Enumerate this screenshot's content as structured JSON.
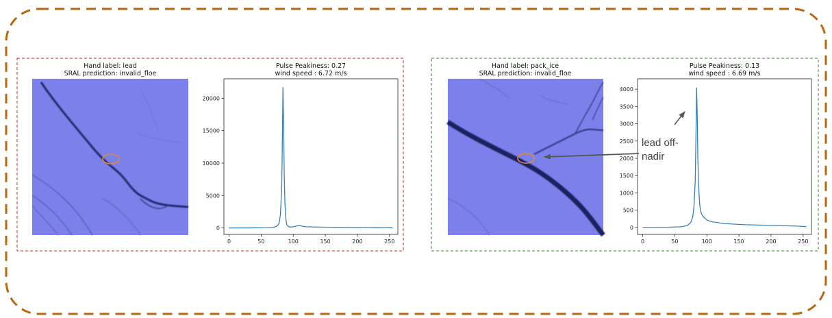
{
  "colors": {
    "outer_border": "#b8660f",
    "left_panel_border": "#cc1f1f",
    "right_panel_border": "#3a7d2c",
    "series_line": "#3a7fb5",
    "ellipse_marker": "#e08a30",
    "arrow": "#555555",
    "satellite_image": "#7b80ea"
  },
  "panels": [
    {
      "image_title_line1": "Hand label: lead",
      "image_title_line2": "SRAL prediction: invalid_floe",
      "image_description_icon": "satellite-ice-image"
    },
    {
      "image_title_line1": "Hand label: pack_ice",
      "image_title_line2": "SRAL prediction: invalid_floe",
      "image_description_icon": "satellite-ice-image"
    }
  ],
  "annotation": {
    "line1": "lead off-",
    "line2": "nadir"
  },
  "chart_data": [
    {
      "type": "line",
      "title": "Pulse Peakiness: 0.27\nwind speed : 6.72 m/s",
      "title_line1": "Pulse Peakiness: 0.27",
      "title_line2": "wind speed : 6.72 m/s",
      "xlabel": "",
      "ylabel": "",
      "xlim": [
        -8,
        263
      ],
      "ylim": [
        -1000,
        23000
      ],
      "xticks": [
        0,
        50,
        100,
        150,
        200,
        250
      ],
      "yticks": [
        0,
        5000,
        10000,
        15000,
        20000
      ],
      "grid": false,
      "x": [
        0,
        20,
        40,
        60,
        70,
        75,
        78,
        80,
        82,
        83,
        84,
        85,
        86,
        87,
        88,
        89,
        90,
        92,
        95,
        100,
        105,
        108,
        110,
        113,
        116,
        120,
        130,
        140,
        150,
        160,
        170,
        180,
        190,
        200,
        210,
        220,
        230,
        240,
        250,
        255
      ],
      "values": [
        0,
        0,
        10,
        30,
        100,
        300,
        700,
        2000,
        6000,
        13000,
        21700,
        16000,
        8000,
        4000,
        2000,
        1000,
        500,
        250,
        120,
        180,
        300,
        350,
        400,
        280,
        220,
        180,
        150,
        120,
        110,
        100,
        80,
        70,
        60,
        50,
        45,
        40,
        35,
        30,
        25,
        20
      ]
    },
    {
      "type": "line",
      "title": "Pulse Peakiness: 0.13\nwind speed : 6.69 m/s",
      "title_line1": "Pulse Peakiness: 0.13",
      "title_line2": "wind speed : 6.69 m/s",
      "xlabel": "",
      "ylabel": "",
      "xlim": [
        -8,
        263
      ],
      "ylim": [
        -200,
        4300
      ],
      "xticks": [
        0,
        50,
        100,
        150,
        200,
        250
      ],
      "yticks": [
        0,
        500,
        1000,
        1500,
        2000,
        2500,
        3000,
        3500,
        4000
      ],
      "grid": false,
      "x": [
        0,
        20,
        40,
        60,
        70,
        75,
        78,
        80,
        82,
        83,
        84,
        85,
        86,
        87,
        88,
        89,
        90,
        92,
        95,
        100,
        105,
        110,
        115,
        120,
        130,
        140,
        150,
        160,
        170,
        180,
        190,
        200,
        210,
        220,
        230,
        240,
        250,
        255
      ],
      "values": [
        0,
        0,
        5,
        20,
        60,
        150,
        300,
        600,
        1400,
        2600,
        4050,
        3300,
        2000,
        1300,
        900,
        650,
        500,
        380,
        300,
        220,
        180,
        160,
        150,
        130,
        110,
        100,
        90,
        80,
        75,
        70,
        65,
        60,
        55,
        50,
        45,
        40,
        30,
        25
      ]
    }
  ]
}
